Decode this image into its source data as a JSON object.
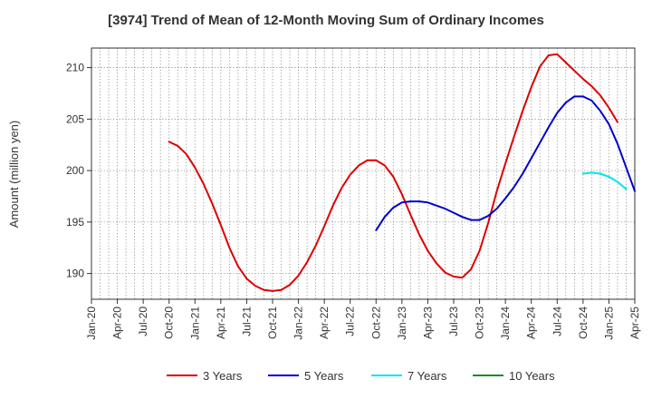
{
  "chart_data": {
    "type": "line",
    "title": "[3974]  Trend of Mean of 12-Month Moving Sum of Ordinary Incomes",
    "xlabel": "",
    "ylabel": "Amount (million yen)",
    "ylim": [
      187.5,
      211.9
    ],
    "yticks": [
      190,
      195,
      200,
      205,
      210
    ],
    "xticks": [
      "Jan-20",
      "Apr-20",
      "Jul-20",
      "Oct-20",
      "Jan-21",
      "Apr-21",
      "Jul-21",
      "Oct-21",
      "Jan-22",
      "Apr-22",
      "Jul-22",
      "Oct-22",
      "Jan-23",
      "Apr-23",
      "Jul-23",
      "Oct-23",
      "Jan-24",
      "Apr-24",
      "Jul-24",
      "Oct-24",
      "Jan-25",
      "Apr-25"
    ],
    "grid": true,
    "x_start": "Jan-20",
    "series": [
      {
        "name": "3 Years",
        "color": "#dd0000",
        "start_index": 9,
        "values": [
          202.8,
          202.4,
          201.6,
          200.3,
          198.7,
          196.8,
          194.7,
          192.5,
          190.7,
          189.5,
          188.8,
          188.4,
          188.3,
          188.4,
          188.9,
          189.8,
          191.1,
          192.7,
          194.6,
          196.6,
          198.3,
          199.6,
          200.5,
          201.0,
          201.0,
          200.5,
          199.4,
          197.7,
          195.7,
          193.8,
          192.2,
          191.0,
          190.1,
          189.7,
          189.6,
          190.4,
          192.2,
          194.9,
          198.0,
          200.7,
          203.3,
          205.8,
          208.1,
          210.1,
          211.2,
          211.3,
          210.5,
          209.7,
          208.9,
          208.2,
          207.3,
          206.1,
          204.7
        ]
      },
      {
        "name": "5 Years",
        "color": "#0000cc",
        "start_index": 33,
        "values": [
          194.2,
          195.5,
          196.4,
          196.9,
          197.0,
          197.0,
          196.9,
          196.6,
          196.3,
          195.9,
          195.5,
          195.2,
          195.2,
          195.6,
          196.3,
          197.3,
          198.4,
          199.7,
          201.2,
          202.7,
          204.2,
          205.6,
          206.6,
          207.2,
          207.2,
          206.8,
          205.8,
          204.5,
          202.6,
          200.3,
          198.0
        ]
      },
      {
        "name": "7 Years",
        "color": "#00e5ee",
        "start_index": 57,
        "values": [
          199.7,
          199.8,
          199.7,
          199.4,
          198.9,
          198.2
        ]
      },
      {
        "name": "10 Years",
        "color": "#228822",
        "start_index": 0,
        "values": []
      }
    ],
    "legend_position": "bottom"
  }
}
